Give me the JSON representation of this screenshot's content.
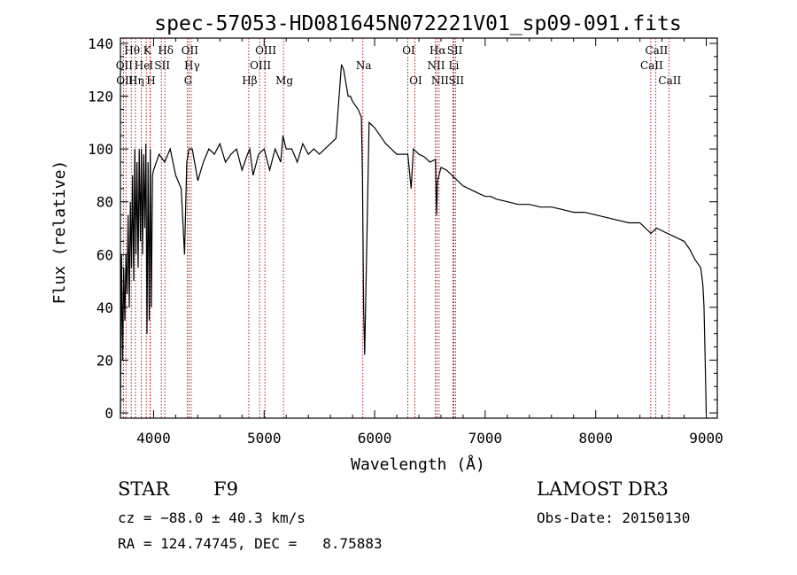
{
  "title": "spec-57053-HD081645N072221V01_sp09-091.fits",
  "footer": {
    "object_class": "STAR",
    "subclass": "F9",
    "survey": "LAMOST DR3",
    "redshift": "cz = −88.0 ± 40.3 km/s",
    "obs_date": "Obs-Date: 20150130",
    "coords": "RA = 124.74745, DEC =   8.75883"
  },
  "colors": {
    "spectrum": "#000000",
    "line_marker": "#aa0000",
    "axes": "#000000"
  },
  "chart_data": {
    "type": "line",
    "title": "spec-57053-HD081645N072221V01_sp09-091.fits",
    "xlabel": "Wavelength (Å)",
    "ylabel": "Flux (relative)",
    "xlim": [
      3700,
      9100
    ],
    "ylim": [
      -2,
      142
    ],
    "xticks": [
      4000,
      5000,
      6000,
      7000,
      8000,
      9000
    ],
    "yticks": [
      0,
      20,
      40,
      60,
      80,
      100,
      120,
      140
    ],
    "grid": false,
    "series": [
      {
        "name": "flux",
        "x": [
          3700,
          3710,
          3720,
          3730,
          3740,
          3750,
          3760,
          3770,
          3780,
          3790,
          3800,
          3810,
          3820,
          3830,
          3840,
          3850,
          3860,
          3870,
          3880,
          3890,
          3900,
          3910,
          3920,
          3930,
          3940,
          3950,
          3960,
          3970,
          3980,
          3990,
          4000,
          4050,
          4100,
          4150,
          4200,
          4250,
          4280,
          4300,
          4320,
          4350,
          4400,
          4450,
          4500,
          4550,
          4600,
          4650,
          4700,
          4750,
          4800,
          4850,
          4870,
          4900,
          4950,
          5000,
          5050,
          5100,
          5150,
          5170,
          5200,
          5250,
          5300,
          5350,
          5400,
          5450,
          5500,
          5550,
          5600,
          5650,
          5700,
          5720,
          5740,
          5760,
          5780,
          5800,
          5850,
          5880,
          5890,
          5900,
          5910,
          5950,
          6000,
          6050,
          6100,
          6150,
          6200,
          6250,
          6300,
          6330,
          6350,
          6400,
          6450,
          6500,
          6550,
          6560,
          6570,
          6600,
          6650,
          6700,
          6750,
          6800,
          6850,
          6900,
          6950,
          7000,
          7050,
          7100,
          7200,
          7300,
          7400,
          7500,
          7600,
          7700,
          7800,
          7900,
          8000,
          8100,
          8200,
          8300,
          8400,
          8450,
          8500,
          8550,
          8600,
          8650,
          8700,
          8750,
          8800,
          8850,
          8900,
          8950,
          8960,
          8970,
          8980,
          8990,
          9000
        ],
        "y": [
          0,
          60,
          20,
          55,
          35,
          60,
          45,
          75,
          40,
          80,
          55,
          90,
          50,
          100,
          60,
          95,
          55,
          100,
          65,
          100,
          60,
          98,
          70,
          102,
          30,
          95,
          35,
          100,
          40,
          90,
          92,
          98,
          95,
          100,
          90,
          85,
          60,
          95,
          100,
          100,
          88,
          95,
          100,
          98,
          102,
          95,
          98,
          100,
          92,
          98,
          100,
          90,
          98,
          100,
          92,
          100,
          95,
          105,
          100,
          100,
          95,
          102,
          98,
          100,
          98,
          100,
          102,
          104,
          132,
          130,
          125,
          120,
          120,
          118,
          115,
          112,
          90,
          40,
          22,
          110,
          108,
          105,
          102,
          100,
          98,
          98,
          98,
          85,
          100,
          98,
          97,
          95,
          96,
          75,
          88,
          93,
          92,
          90,
          88,
          86,
          85,
          84,
          83,
          82,
          82,
          81,
          80,
          79,
          79,
          78,
          78,
          77,
          76,
          76,
          75,
          74,
          73,
          72,
          72,
          70,
          68,
          70,
          69,
          68,
          67,
          66,
          65,
          62,
          58,
          55,
          52,
          48,
          40,
          20,
          0
        ]
      }
    ],
    "line_labels": [
      {
        "label": "Hθ",
        "x": 3798
      },
      {
        "label": "K",
        "x": 3934
      },
      {
        "label": "Hδ",
        "x": 4102
      },
      {
        "label": "OII",
        "x": 4320
      },
      {
        "label": "OIII",
        "x": 5007
      },
      {
        "label": "OI",
        "x": 6300
      },
      {
        "label": "Hα",
        "x": 6563
      },
      {
        "label": "SII",
        "x": 6717
      },
      {
        "label": "CaII",
        "x": 8542
      },
      {
        "label": "OII",
        "x": 3727
      },
      {
        "label": "He",
        "x": 3889
      },
      {
        "label": "I",
        "x": 3970
      },
      {
        "label": "SII",
        "x": 4070
      },
      {
        "label": "Hγ",
        "x": 4340
      },
      {
        "label": "OIII",
        "x": 4959
      },
      {
        "label": "Na",
        "x": 5893
      },
      {
        "label": "NII",
        "x": 6548
      },
      {
        "label": "Li",
        "x": 6708
      },
      {
        "label": "CaII",
        "x": 8498
      },
      {
        "label": "OIII",
        "x": 3750
      },
      {
        "label": "Hη",
        "x": 3835
      },
      {
        "label": "H",
        "x": 3968
      },
      {
        "label": "G",
        "x": 4305
      },
      {
        "label": "Hβ",
        "x": 4861
      },
      {
        "label": "Mg",
        "x": 5175
      },
      {
        "label": "OI",
        "x": 6364
      },
      {
        "label": "NII",
        "x": 6583
      },
      {
        "label": "SII",
        "x": 6731
      },
      {
        "label": "CaII",
        "x": 8662
      }
    ]
  }
}
